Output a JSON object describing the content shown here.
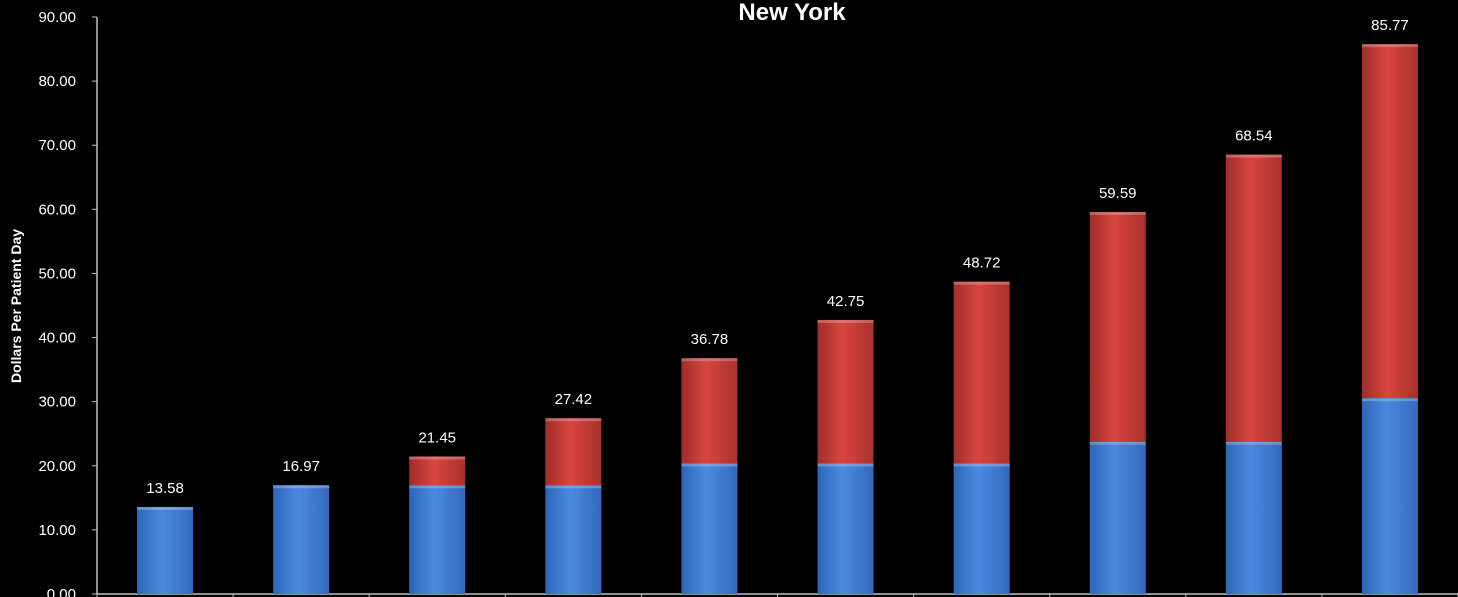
{
  "chart_data": {
    "type": "bar",
    "stacked": true,
    "title": "New York",
    "ylabel": "Dollars Per Patient Day",
    "xlabel": "",
    "ylim": [
      0,
      90
    ],
    "yticks": [
      "0.00",
      "10.00",
      "20.00",
      "30.00",
      "40.00",
      "50.00",
      "60.00",
      "70.00",
      "80.00",
      "90.00"
    ],
    "grid": false,
    "legend": "none",
    "categories": [
      "",
      "",
      "",
      "",
      "",
      "",
      "",
      "",
      "",
      ""
    ],
    "totals": [
      13.58,
      16.97,
      21.45,
      27.42,
      36.78,
      42.75,
      48.72,
      59.59,
      68.54,
      85.77
    ],
    "total_labels": [
      "13.58",
      "16.97",
      "21.45",
      "27.42",
      "36.78",
      "42.75",
      "48.72",
      "59.59",
      "68.54",
      "85.77"
    ],
    "series": [
      {
        "color": "#3f7fd6",
        "values": [
          13.58,
          16.97,
          16.97,
          16.97,
          20.36,
          20.36,
          20.36,
          23.76,
          23.76,
          30.55
        ]
      },
      {
        "color": "#c8403c",
        "values": [
          0,
          0,
          4.48,
          10.45,
          16.42,
          22.39,
          28.36,
          35.83,
          44.78,
          55.22
        ]
      }
    ]
  }
}
